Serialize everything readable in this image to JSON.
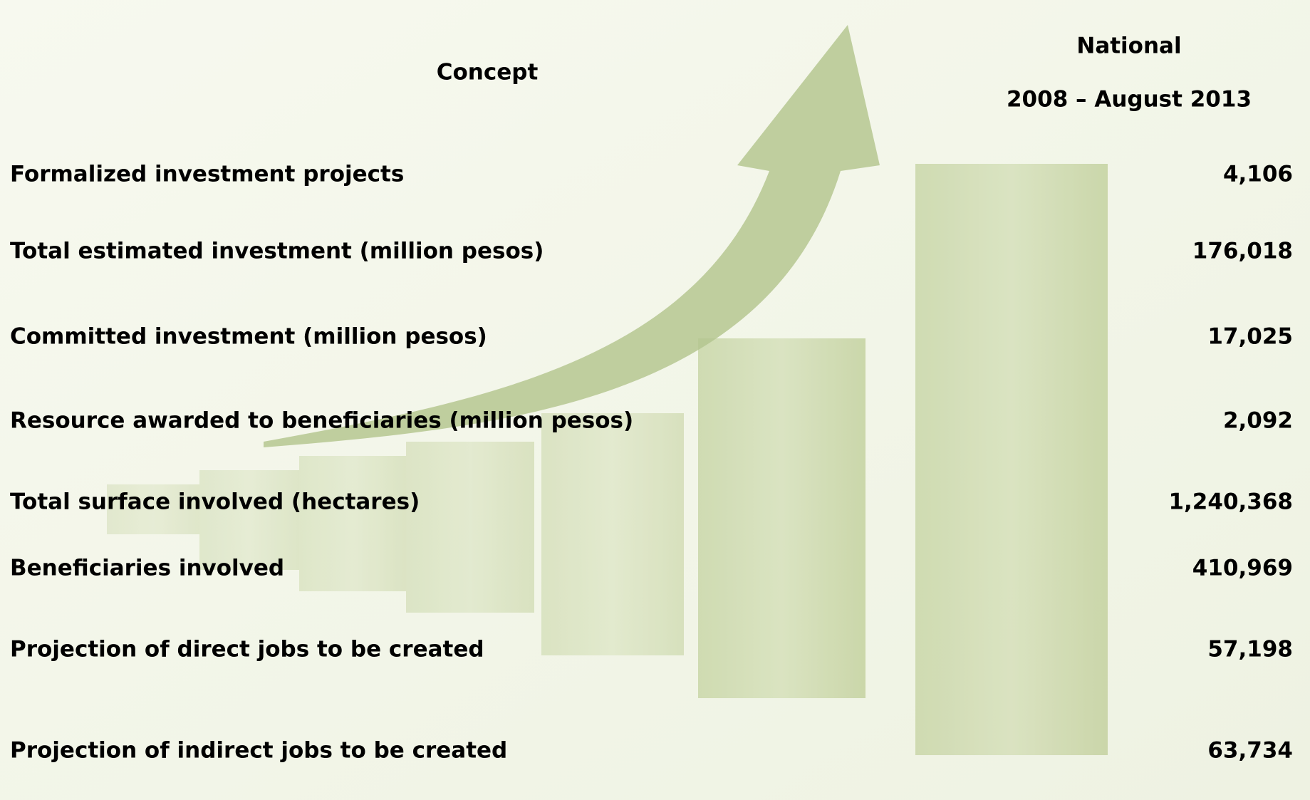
{
  "header": {
    "concept": "Concept",
    "national": "National",
    "period": "2008 – August 2013"
  },
  "table": {
    "rows": [
      [
        "Formalized investment projects",
        "4,106"
      ],
      [
        "Total estimated investment (million pesos)",
        "176,018"
      ],
      [
        "Committed investment (million pesos)",
        "17,025"
      ],
      [
        "Resource awarded to beneficiaries (million pesos)",
        "2,092"
      ],
      [
        "Total surface involved (hectares)",
        "1,240,368"
      ],
      [
        "Beneficiaries involved",
        "410,969"
      ],
      [
        "Projection of direct jobs to be created",
        "57,198"
      ],
      [
        "Projection of indirect jobs to be created",
        "63,734"
      ]
    ]
  }
}
